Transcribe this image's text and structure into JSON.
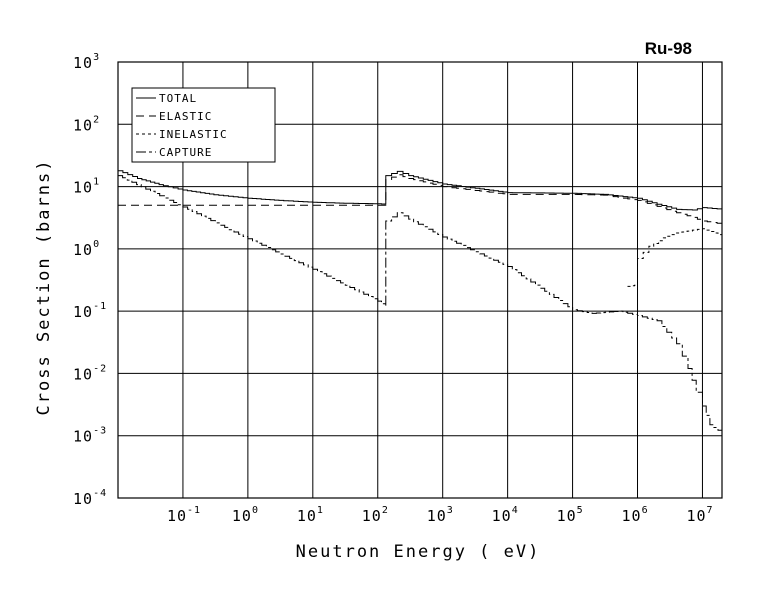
{
  "chart_data": {
    "type": "line",
    "title": "Ru-98",
    "xlabel": "Neutron Energy ( eV)",
    "ylabel": "Cross Section (barns)",
    "xscale": "log",
    "yscale": "log",
    "xlim": [
      0.01,
      20000000
    ],
    "ylim": [
      0.0001,
      1000
    ],
    "grid": true,
    "legend_position": "top-left",
    "x_ticks": [
      {
        "base": "10",
        "exp": "-1"
      },
      {
        "base": "10",
        "exp": "0"
      },
      {
        "base": "10",
        "exp": "1"
      },
      {
        "base": "10",
        "exp": "2"
      },
      {
        "base": "10",
        "exp": "3"
      },
      {
        "base": "10",
        "exp": "4"
      },
      {
        "base": "10",
        "exp": "5"
      },
      {
        "base": "10",
        "exp": "6"
      },
      {
        "base": "10",
        "exp": "7"
      }
    ],
    "y_ticks": [
      {
        "base": "10",
        "exp": "-4"
      },
      {
        "base": "10",
        "exp": "-3"
      },
      {
        "base": "10",
        "exp": "-2"
      },
      {
        "base": "10",
        "exp": "-1"
      },
      {
        "base": "10",
        "exp": "0"
      },
      {
        "base": "10",
        "exp": "1"
      },
      {
        "base": "10",
        "exp": "2"
      },
      {
        "base": "10",
        "exp": "3"
      }
    ],
    "series": [
      {
        "name": "TOTAL",
        "dash": "",
        "points": [
          [
            0.01,
            18
          ],
          [
            0.02,
            13.5
          ],
          [
            0.05,
            10.3
          ],
          [
            0.1,
            8.8
          ],
          [
            0.3,
            7.4
          ],
          [
            1,
            6.5
          ],
          [
            3,
            6.0
          ],
          [
            10,
            5.6
          ],
          [
            30,
            5.4
          ],
          [
            100,
            5.3
          ],
          [
            130,
            5.2
          ],
          [
            133,
            15
          ],
          [
            200,
            17.5
          ],
          [
            300,
            15
          ],
          [
            1000,
            11
          ],
          [
            10000,
            8.0
          ],
          [
            100000,
            7.8
          ],
          [
            300000,
            7.5
          ],
          [
            1000000,
            6.5
          ],
          [
            2000000,
            5.2
          ],
          [
            4000000,
            4.3
          ],
          [
            7000000,
            4.2
          ],
          [
            10000000,
            4.6
          ],
          [
            20000000,
            4.3
          ]
        ]
      },
      {
        "name": "ELASTIC",
        "dash": "8,5",
        "points": [
          [
            0.01,
            5.0
          ],
          [
            1,
            5.0
          ],
          [
            10,
            5.0
          ],
          [
            100,
            5.0
          ],
          [
            130,
            5.0
          ],
          [
            133,
            13
          ],
          [
            200,
            15.5
          ],
          [
            300,
            13.5
          ],
          [
            1000,
            10
          ],
          [
            10000,
            7.5
          ],
          [
            100000,
            7.5
          ],
          [
            300000,
            7.3
          ],
          [
            1000000,
            6.0
          ],
          [
            2000000,
            4.8
          ],
          [
            4000000,
            3.8
          ],
          [
            7000000,
            3.2
          ],
          [
            10000000,
            2.8
          ],
          [
            20000000,
            2.5
          ]
        ]
      },
      {
        "name": "INELASTIC",
        "dash": "3,3",
        "points": [
          [
            700000,
            0.25
          ],
          [
            900000,
            0.26
          ],
          [
            1000000,
            0.7
          ],
          [
            1500000,
            1.1
          ],
          [
            2500000,
            1.5
          ],
          [
            4000000,
            1.8
          ],
          [
            7000000,
            2.0
          ],
          [
            10000000,
            2.1
          ],
          [
            13000000,
            1.9
          ],
          [
            20000000,
            1.6
          ]
        ]
      },
      {
        "name": "CAPTURE",
        "dash": "10,3,3,3",
        "points": [
          [
            0.01,
            15
          ],
          [
            0.1,
            4.7
          ],
          [
            1,
            1.45
          ],
          [
            10,
            0.47
          ],
          [
            100,
            0.145
          ],
          [
            130,
            0.12
          ],
          [
            133,
            2.8
          ],
          [
            200,
            3.8
          ],
          [
            300,
            3.0
          ],
          [
            1000,
            1.55
          ],
          [
            10000,
            0.52
          ],
          [
            100000,
            0.105
          ],
          [
            200000,
            0.092
          ],
          [
            500000,
            0.1
          ],
          [
            1000000,
            0.085
          ],
          [
            2000000,
            0.07
          ],
          [
            4000000,
            0.03
          ],
          [
            6000000,
            0.012
          ],
          [
            8000000,
            0.005
          ],
          [
            10000000,
            0.003
          ],
          [
            13000000,
            0.0015
          ],
          [
            20000000,
            0.0011
          ]
        ]
      }
    ]
  }
}
